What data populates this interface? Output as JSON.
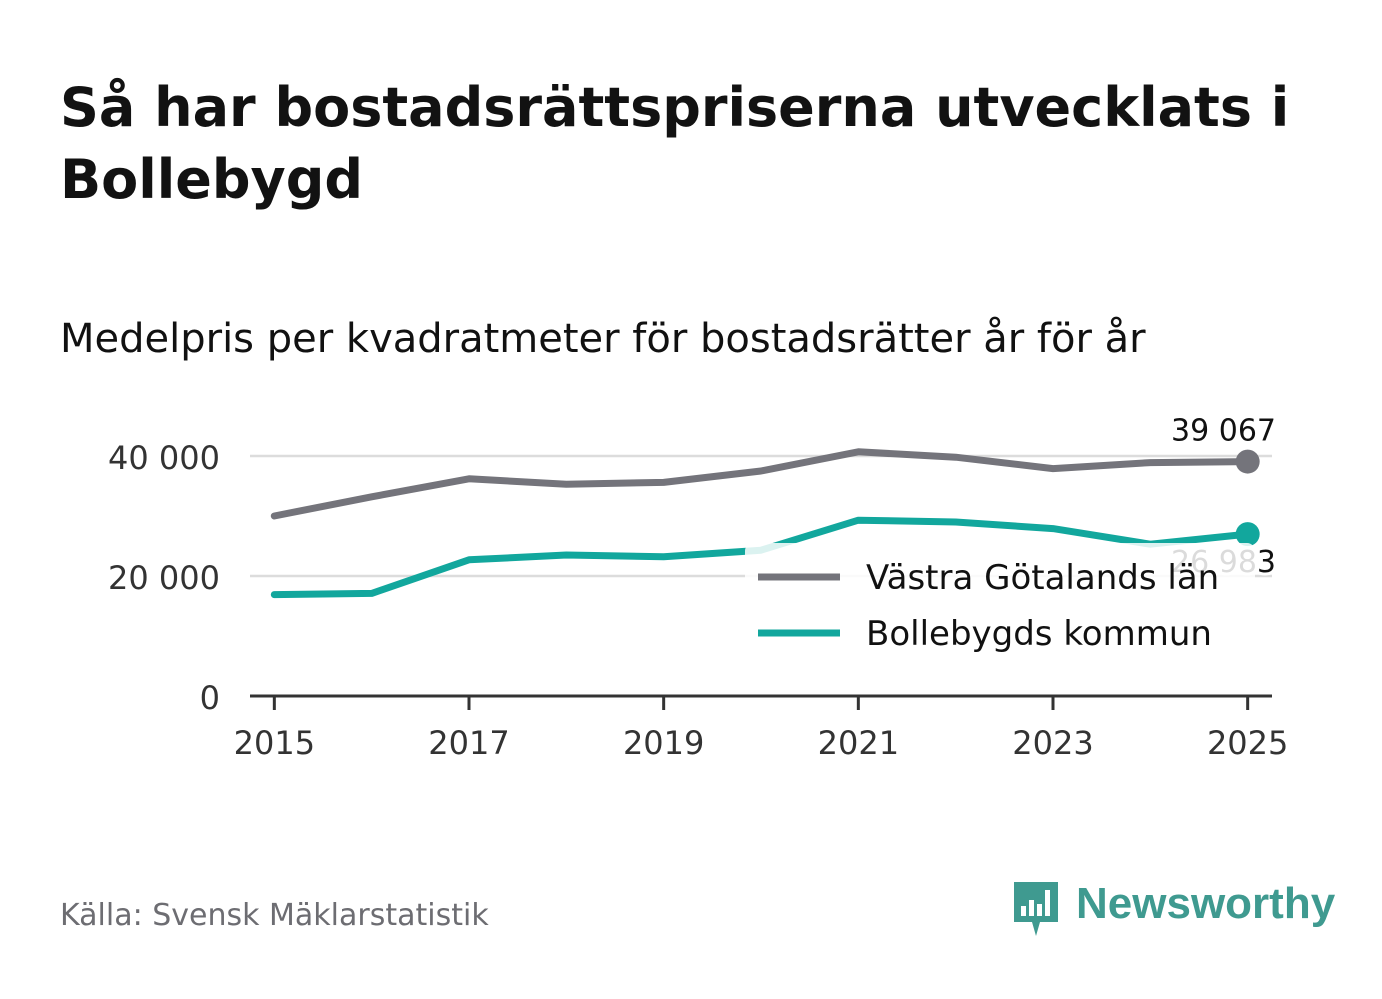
{
  "title": "Så har bostadsrättspriserna utvecklats i Bollebygd",
  "subtitle": "Medelpris per kvadratmeter för bostadsrätter år för år",
  "source": "Källa: Svensk Mäklarstatistik",
  "brand": {
    "name": "Newsworthy",
    "icon": "newsworthy-logo-icon",
    "color": "#3f9a90"
  },
  "chart_data": {
    "type": "line",
    "title": "Så har bostadsrättspriserna utvecklats i Bollebygd",
    "subtitle": "Medelpris per kvadratmeter för bostadsrätter år för år",
    "xlabel": "",
    "ylabel": "",
    "x": [
      2015,
      2016,
      2017,
      2018,
      2019,
      2020,
      2021,
      2022,
      2023,
      2024,
      2025
    ],
    "x_ticks": [
      "2015",
      "2017",
      "2019",
      "2021",
      "2023",
      "2025"
    ],
    "x_range": [
      2014.75,
      2025.25
    ],
    "y_ticks": [
      "0",
      "20 000",
      "40 000"
    ],
    "ylim": [
      0,
      40000
    ],
    "grid": true,
    "legend_position": "bottom-right",
    "series": [
      {
        "name": "Västra Götalands län",
        "color": "#74747b",
        "values": [
          30000,
          33200,
          36200,
          35300,
          35600,
          37500,
          40700,
          39800,
          37900,
          38900,
          39067
        ],
        "end_label": "39 067"
      },
      {
        "name": "Bollebygds kommun",
        "color": "#12a79d",
        "values": [
          16900,
          17100,
          22700,
          23500,
          23200,
          24300,
          29300,
          29000,
          27900,
          25300,
          26983
        ],
        "end_label": "26 983"
      }
    ]
  }
}
